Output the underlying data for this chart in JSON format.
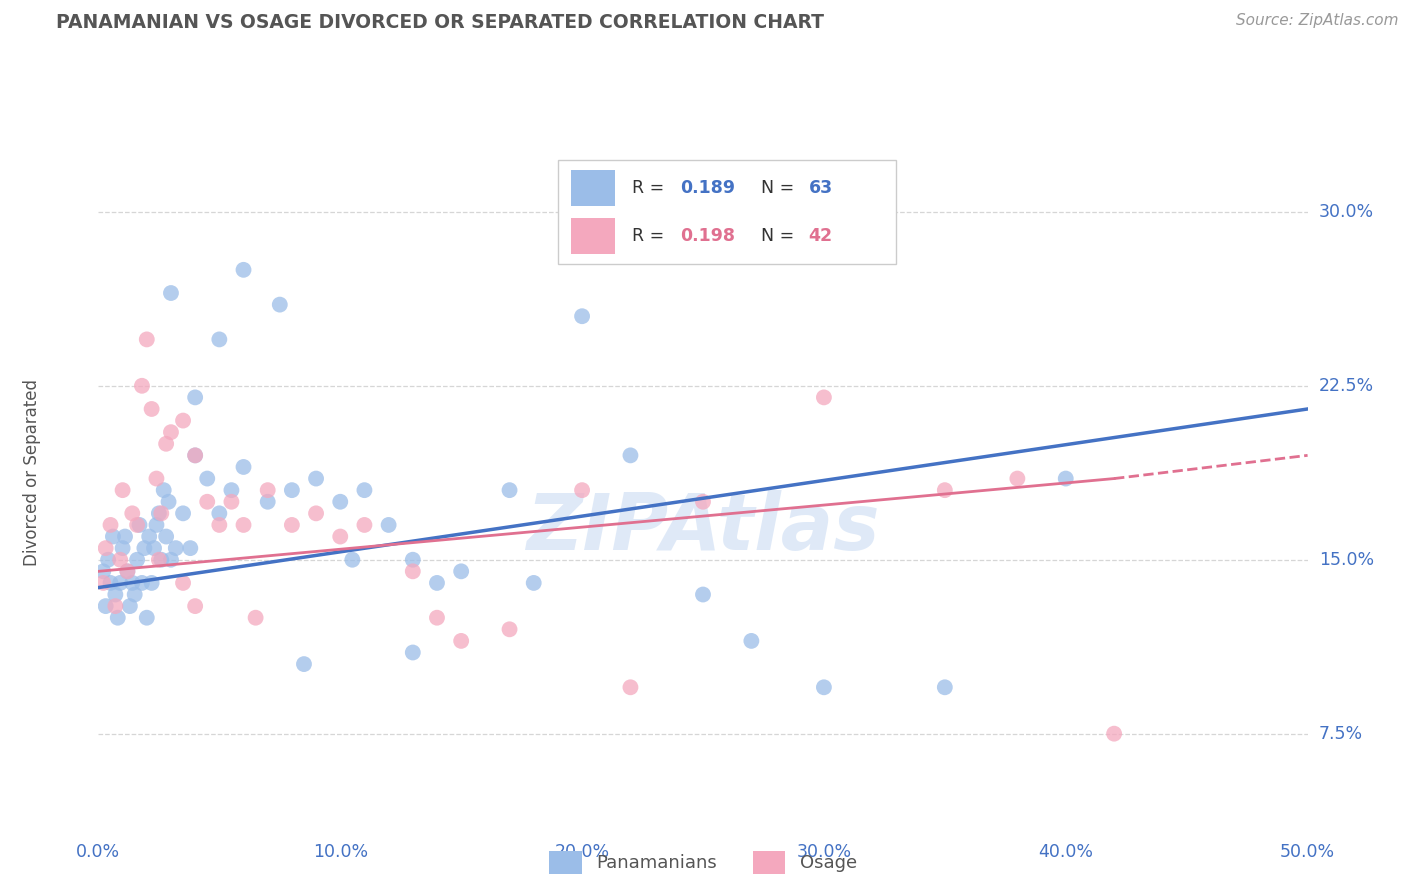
{
  "title": "PANAMANIAN VS OSAGE DIVORCED OR SEPARATED CORRELATION CHART",
  "source_text": "Source: ZipAtlas.com",
  "ylabel": "Divorced or Separated",
  "xlim": [
    0.0,
    50.0
  ],
  "ylim": [
    3.75,
    33.75
  ],
  "xticks": [
    0.0,
    10.0,
    20.0,
    30.0,
    40.0,
    50.0
  ],
  "yticks": [
    7.5,
    15.0,
    22.5,
    30.0
  ],
  "background_color": "#ffffff",
  "grid_color": "#cccccc",
  "axis_label_color": "#4472c4",
  "legend_label1": "Panamanians",
  "legend_label2": "Osage",
  "scatter_color_blue": "#9bbde8",
  "scatter_color_pink": "#f4a8be",
  "trend_color_blue": "#4472c4",
  "trend_color_pink": "#e07090",
  "watermark": "ZIPAtlas",
  "pan_x": [
    0.2,
    0.3,
    0.4,
    0.5,
    0.6,
    0.7,
    0.8,
    0.9,
    1.0,
    1.1,
    1.2,
    1.3,
    1.4,
    1.5,
    1.6,
    1.7,
    1.8,
    1.9,
    2.0,
    2.1,
    2.2,
    2.3,
    2.4,
    2.5,
    2.6,
    2.7,
    2.8,
    2.9,
    3.0,
    3.2,
    3.5,
    3.8,
    4.0,
    4.5,
    5.0,
    5.5,
    6.0,
    7.0,
    8.0,
    9.0,
    10.0,
    11.0,
    12.0,
    13.0,
    14.0,
    15.0,
    17.0,
    18.0,
    20.0,
    22.0,
    25.0,
    27.0,
    30.0,
    35.0,
    40.0,
    3.0,
    4.0,
    5.0,
    6.0,
    7.5,
    8.5,
    10.5,
    13.0
  ],
  "pan_y": [
    14.5,
    13.0,
    15.0,
    14.0,
    16.0,
    13.5,
    12.5,
    14.0,
    15.5,
    16.0,
    14.5,
    13.0,
    14.0,
    13.5,
    15.0,
    16.5,
    14.0,
    15.5,
    12.5,
    16.0,
    14.0,
    15.5,
    16.5,
    17.0,
    15.0,
    18.0,
    16.0,
    17.5,
    15.0,
    15.5,
    17.0,
    15.5,
    19.5,
    18.5,
    17.0,
    18.0,
    19.0,
    17.5,
    18.0,
    18.5,
    17.5,
    18.0,
    16.5,
    15.0,
    14.0,
    14.5,
    18.0,
    14.0,
    25.5,
    19.5,
    13.5,
    11.5,
    9.5,
    9.5,
    18.5,
    26.5,
    22.0,
    24.5,
    27.5,
    26.0,
    10.5,
    15.0,
    11.0
  ],
  "osage_x": [
    0.2,
    0.3,
    0.5,
    0.7,
    0.9,
    1.0,
    1.2,
    1.4,
    1.6,
    1.8,
    2.0,
    2.2,
    2.4,
    2.6,
    2.8,
    3.0,
    3.5,
    4.0,
    4.5,
    5.0,
    5.5,
    6.0,
    7.0,
    8.0,
    9.0,
    10.0,
    11.0,
    13.0,
    14.0,
    15.0,
    17.0,
    20.0,
    22.0,
    25.0,
    30.0,
    35.0,
    38.0,
    42.0,
    4.0,
    6.5,
    3.5,
    2.5
  ],
  "osage_y": [
    14.0,
    15.5,
    16.5,
    13.0,
    15.0,
    18.0,
    14.5,
    17.0,
    16.5,
    22.5,
    24.5,
    21.5,
    18.5,
    17.0,
    20.0,
    20.5,
    21.0,
    19.5,
    17.5,
    16.5,
    17.5,
    16.5,
    18.0,
    16.5,
    17.0,
    16.0,
    16.5,
    14.5,
    12.5,
    11.5,
    12.0,
    18.0,
    9.5,
    17.5,
    22.0,
    18.0,
    18.5,
    7.5,
    13.0,
    12.5,
    14.0,
    15.0
  ],
  "blue_trend_x0": 0.0,
  "blue_trend_y0": 13.8,
  "blue_trend_x1": 50.0,
  "blue_trend_y1": 21.5,
  "pink_trend_x0": 0.0,
  "pink_trend_y0": 14.5,
  "pink_trend_x1_solid": 42.0,
  "pink_trend_y1_solid": 18.5,
  "pink_trend_x1_dash": 50.0,
  "pink_trend_y1_dash": 19.5
}
